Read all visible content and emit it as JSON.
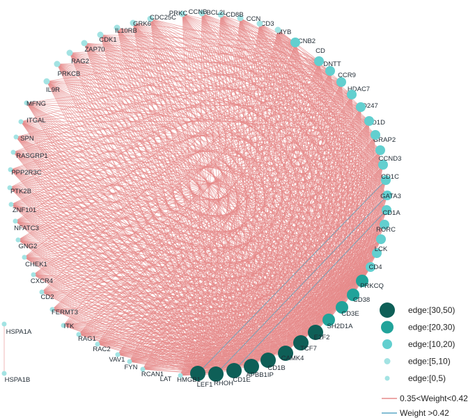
{
  "colors": {
    "tier_30_50": "#0e5f57",
    "tier_20_30": "#21a39a",
    "tier_10_20": "#62cfcf",
    "tier_5_10": "#a3e3e3",
    "tier_0_5": "#a3e3e3",
    "edge_mid": "#e58a8a",
    "edge_high": "#5aa7c6"
  },
  "nodes": [
    {
      "id": "HMGB1",
      "tier": 4
    },
    {
      "id": "LEF1",
      "tier": 4
    },
    {
      "id": "RHOH",
      "tier": 4
    },
    {
      "id": "CD1E",
      "tier": 4
    },
    {
      "id": "APBB1IP",
      "tier": 4
    },
    {
      "id": "CD1B",
      "tier": 4
    },
    {
      "id": "CAMK4",
      "tier": 4
    },
    {
      "id": "TCF7",
      "tier": 4
    },
    {
      "id": "E2F2",
      "tier": 3
    },
    {
      "id": "SH2D1A",
      "tier": 3
    },
    {
      "id": "CD3E",
      "tier": 3
    },
    {
      "id": "CD38",
      "tier": 3
    },
    {
      "id": "PRKCQ",
      "tier": 2
    },
    {
      "id": "CD4",
      "tier": 2
    },
    {
      "id": "LCK",
      "tier": 2
    },
    {
      "id": "RORC",
      "tier": 2
    },
    {
      "id": "CD1A",
      "tier": 2
    },
    {
      "id": "GATA3",
      "tier": 2
    },
    {
      "id": "CD1C",
      "tier": 2
    },
    {
      "id": "CCND3",
      "tier": 2
    },
    {
      "id": "GRAP2",
      "tier": 2
    },
    {
      "id": "CD1D",
      "tier": 2
    },
    {
      "id": "CD247",
      "tier": 2
    },
    {
      "id": "HDAC7",
      "tier": 2
    },
    {
      "id": "CCR9",
      "tier": 2
    },
    {
      "id": "DNTT",
      "tier": 2
    },
    {
      "id": "CD",
      "tier": 2
    },
    {
      "id": "CCNB2",
      "tier": 2
    },
    {
      "id": "MYB",
      "tier": 2
    },
    {
      "id": "CD3",
      "tier": 1
    },
    {
      "id": "CCN",
      "tier": 1
    },
    {
      "id": "CD8B",
      "tier": 1
    },
    {
      "id": "BCL2L",
      "tier": 1
    },
    {
      "id": "CCNB",
      "tier": 1
    },
    {
      "id": "PRKC",
      "tier": 1
    },
    {
      "id": "CDC25C",
      "tier": 1
    },
    {
      "id": "GRK6",
      "tier": 1
    },
    {
      "id": "IL10RB",
      "tier": 1
    },
    {
      "id": "CDK1",
      "tier": 1
    },
    {
      "id": "ZAP70",
      "tier": 1
    },
    {
      "id": "RAG2",
      "tier": 1
    },
    {
      "id": "PRKCB",
      "tier": 1
    },
    {
      "id": "IL9R",
      "tier": 1
    },
    {
      "id": "MFNG",
      "tier": 0
    },
    {
      "id": "ITGAL",
      "tier": 0
    },
    {
      "id": "SPN",
      "tier": 0
    },
    {
      "id": "RASGRP1",
      "tier": 0
    },
    {
      "id": "PPP2R3C",
      "tier": 0
    },
    {
      "id": "PTK2B",
      "tier": 0
    },
    {
      "id": "ZNF101",
      "tier": 0
    },
    {
      "id": "NFATC3",
      "tier": 0
    },
    {
      "id": "GNG2",
      "tier": 0
    },
    {
      "id": "CHEK1",
      "tier": 0
    },
    {
      "id": "CXCR4",
      "tier": 0
    },
    {
      "id": "CD2",
      "tier": 0
    },
    {
      "id": "FERMT3",
      "tier": 0
    },
    {
      "id": "ITK",
      "tier": 0
    },
    {
      "id": "RAG1",
      "tier": 0
    },
    {
      "id": "RAC2",
      "tier": 0
    },
    {
      "id": "VAV1",
      "tier": 0
    },
    {
      "id": "FYN",
      "tier": 0
    },
    {
      "id": "RCAN1",
      "tier": 0
    },
    {
      "id": "LAT",
      "tier": 0
    },
    {
      "id": "HSPA1A",
      "tier": 0
    },
    {
      "id": "HSPA1B",
      "tier": 0
    }
  ],
  "edge_rule": {
    "hubs": [
      "HMGB1",
      "LEF1",
      "RHOH",
      "CD1E",
      "APBB1IP",
      "CD1B",
      "CAMK4",
      "TCF7",
      "E2F2",
      "SH2D1A",
      "CD3E",
      "CD38",
      "PRKCQ",
      "CD4",
      "LCK",
      "RORC",
      "CD1A",
      "GATA3",
      "CD1C",
      "CCND3",
      "GRAP2",
      "CD1D",
      "CD247",
      "HDAC7",
      "CCR9",
      "DNTT",
      "CD",
      "CCNB2",
      "MYB"
    ]
  },
  "edges_extra": [
    [
      "HSPA1A",
      "HSPA1B"
    ],
    [
      "IL9R",
      "CD247"
    ],
    [
      "MFNG",
      "CD1D"
    ]
  ],
  "edges_high": [
    [
      "LEF1",
      "GATA3"
    ],
    [
      "RHOH",
      "CD1A"
    ],
    [
      "HMGB1",
      "CD1C"
    ]
  ],
  "legend": {
    "items": [
      {
        "label": "edge:[30,50)",
        "tier": 4
      },
      {
        "label": "edge:[20,30)",
        "tier": 3
      },
      {
        "label": "edge:[10,20)",
        "tier": 2
      },
      {
        "label": "edge:[5,10)",
        "tier": 1
      },
      {
        "label": "edge:[0,5)",
        "tier": 0
      }
    ],
    "lines": [
      {
        "label": "0.35<Weight<0.42",
        "kind": "mid"
      },
      {
        "label": "Weight >0.42",
        "kind": "high"
      }
    ]
  }
}
